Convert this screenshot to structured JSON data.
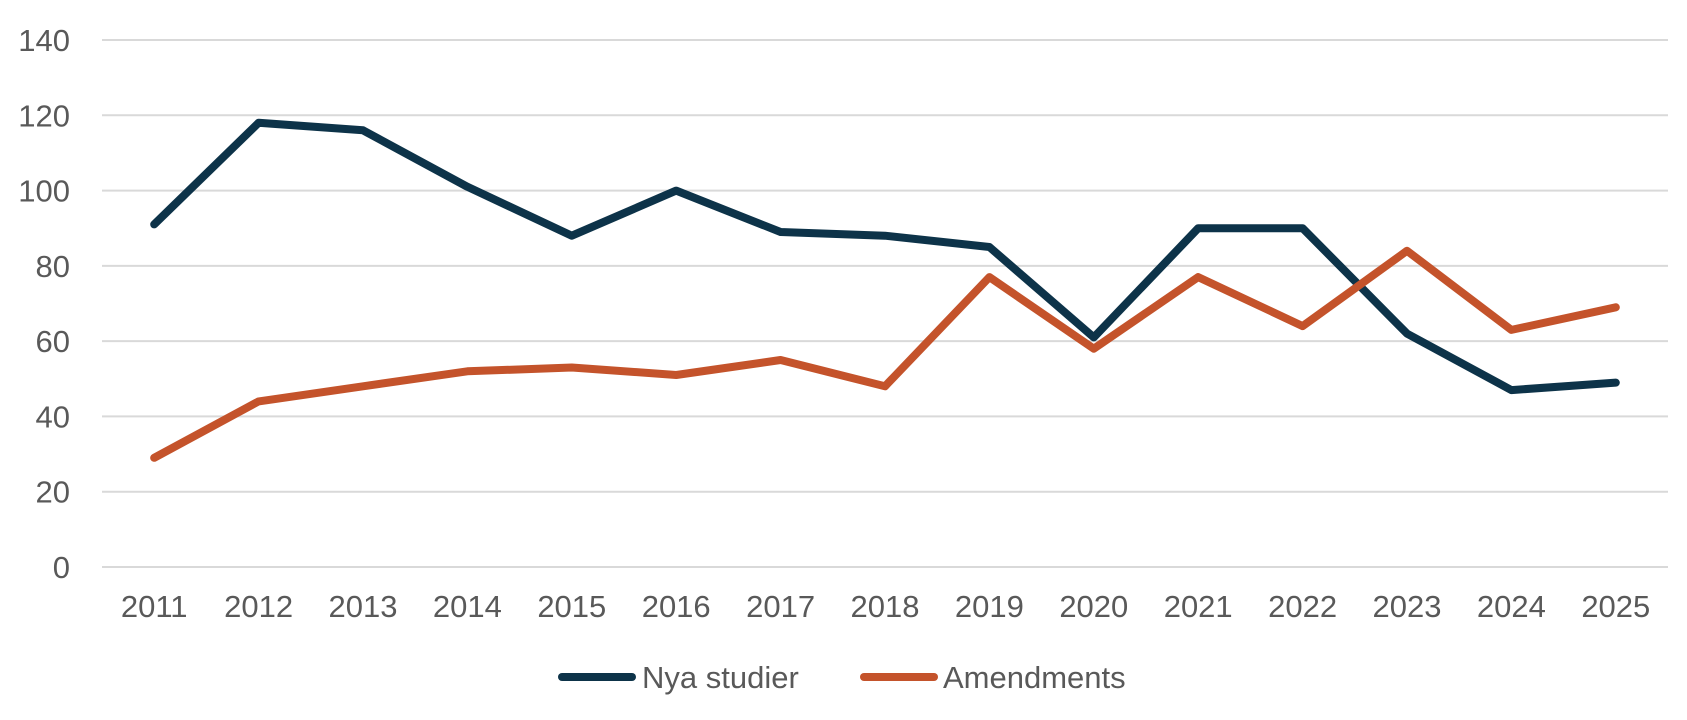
{
  "chart_data": {
    "type": "line",
    "title": "",
    "xlabel": "",
    "ylabel": "",
    "categories": [
      "2011",
      "2012",
      "2013",
      "2014",
      "2015",
      "2016",
      "2017",
      "2018",
      "2019",
      "2020",
      "2021",
      "2022",
      "2023",
      "2024",
      "2025"
    ],
    "yticks": [
      "0",
      "20",
      "40",
      "60",
      "80",
      "100",
      "120",
      "140"
    ],
    "ylim": [
      0,
      140
    ],
    "grid": true,
    "legend_position": "bottom",
    "series": [
      {
        "name": "Nya studier",
        "color": "#0d3349",
        "values": [
          91,
          118,
          116,
          101,
          88,
          100,
          89,
          88,
          85,
          61,
          90,
          90,
          62,
          47,
          49
        ]
      },
      {
        "name": "Amendments",
        "color": "#c4532b",
        "values": [
          29,
          44,
          48,
          52,
          53,
          51,
          55,
          48,
          77,
          58,
          77,
          64,
          84,
          63,
          69
        ]
      }
    ]
  }
}
